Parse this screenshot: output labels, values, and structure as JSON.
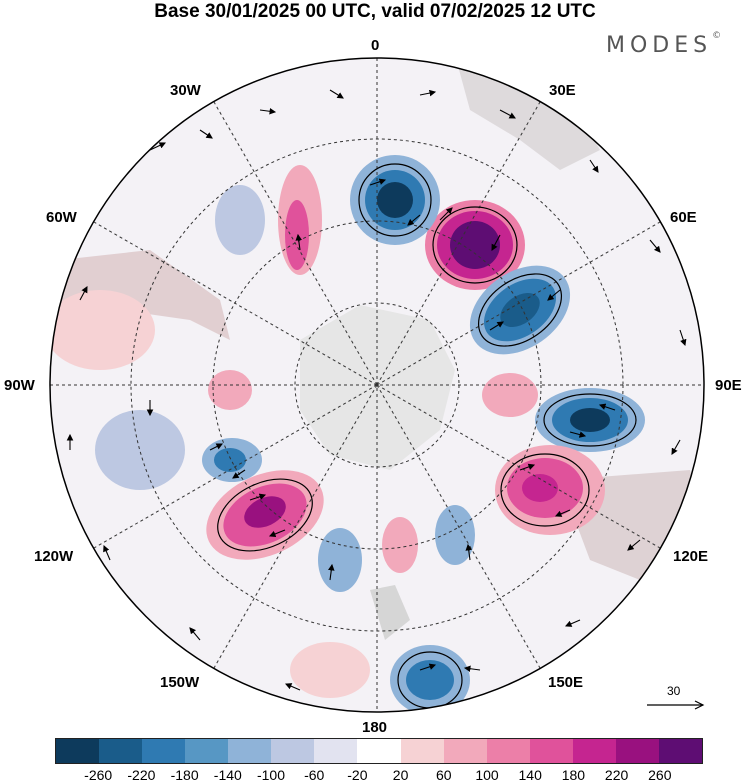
{
  "title": "Base 30/01/2025 00 UTC, valid 07/02/2025 12 UTC",
  "brand": "MODES",
  "brand_mark": "©",
  "map": {
    "projection": "south-polar-stereographic",
    "lon_labels": {
      "top": "0",
      "top_right": "30E",
      "right_upper": "60E",
      "right": "90E",
      "right_lower": "120E",
      "bottom_right": "150E",
      "bottom": "180",
      "bottom_left": "150W",
      "left_lower": "120W",
      "left": "90W",
      "left_upper": "60W",
      "top_left": "30W"
    }
  },
  "vector_reference": {
    "value": "30"
  },
  "colorbar": {
    "colors": [
      "#0d3a5c",
      "#1a5c8a",
      "#2f7ab2",
      "#5797c4",
      "#8fb3d8",
      "#bdc8e2",
      "#e2e3f0",
      "#ffffff",
      "#f6d2d4",
      "#f2a9bb",
      "#ec7fa8",
      "#e0529b",
      "#c52590",
      "#99117f",
      "#5e0d73"
    ],
    "tick_labels": [
      "-260",
      "-220",
      "-180",
      "-140",
      "-100",
      "-60",
      "-20",
      "20",
      "60",
      "100",
      "140",
      "180",
      "220",
      "260"
    ]
  }
}
